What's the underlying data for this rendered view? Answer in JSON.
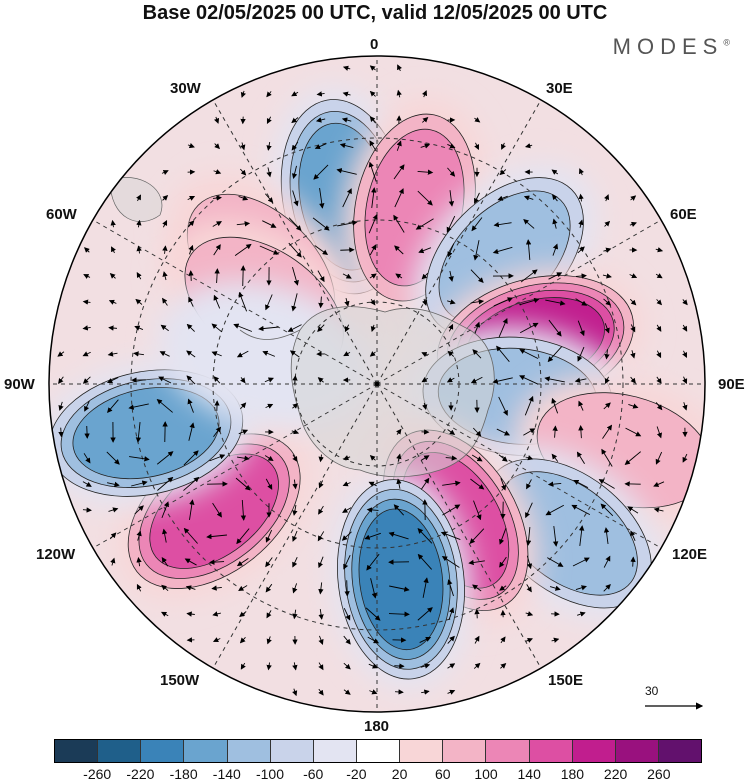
{
  "title": "Base 02/05/2025 00 UTC, valid 12/05/2025 00 UTC",
  "logo": "MODES",
  "logo_mark": "®",
  "longitude_labels": {
    "l0": "0",
    "l30e": "30E",
    "l60e": "60E",
    "l90e": "90E",
    "l120e": "120E",
    "l150e": "150E",
    "l180": "180",
    "l150w": "150W",
    "l120w": "120W",
    "l90w": "90W",
    "l60w": "60W",
    "l30w": "30W"
  },
  "vector_scale_label": "30",
  "colorbar": {
    "colors": [
      "#1b3b57",
      "#1f5f8a",
      "#3a83b8",
      "#6aa4cf",
      "#9fbfe0",
      "#c9d3ea",
      "#e3e4f2",
      "#ffffff",
      "#f8d6d7",
      "#f3b4c6",
      "#ec86b6",
      "#dd4fa3",
      "#c11e8e",
      "#99117e",
      "#62116d"
    ],
    "tick_labels": [
      "-260",
      "-220",
      "-180",
      "-140",
      "-100",
      "-60",
      "-20",
      "20",
      "60",
      "100",
      "140",
      "180",
      "220",
      "260"
    ]
  },
  "anomaly_centers": [
    {
      "lon": -10,
      "rad": 0.58,
      "sign": -1,
      "level": 4
    },
    {
      "lon": 12,
      "rad": 0.55,
      "sign": 1,
      "level": 3
    },
    {
      "lon": 45,
      "rad": 0.55,
      "sign": -1,
      "level": 3
    },
    {
      "lon": 75,
      "rad": 0.5,
      "sign": 1,
      "level": 5
    },
    {
      "lon": 95,
      "rad": 0.43,
      "sign": -1,
      "level": 3
    },
    {
      "lon": 105,
      "rad": 0.78,
      "sign": 1,
      "level": 2
    },
    {
      "lon": 128,
      "rad": 0.74,
      "sign": -1,
      "level": 3
    },
    {
      "lon": 150,
      "rad": 0.48,
      "sign": 1,
      "level": 4
    },
    {
      "lon": 173,
      "rad": 0.6,
      "sign": -1,
      "level": 5
    },
    {
      "lon": -128,
      "rad": 0.63,
      "sign": 1,
      "level": 4
    },
    {
      "lon": -102,
      "rad": 0.72,
      "sign": -1,
      "level": 4
    },
    {
      "lon": -45,
      "rad": 0.5,
      "sign": 1,
      "level": 2
    },
    {
      "lon": -55,
      "rad": 0.42,
      "sign": 1,
      "level": 2
    },
    {
      "lon": -75,
      "rad": 0.35,
      "sign": -1,
      "level": 1
    }
  ]
}
